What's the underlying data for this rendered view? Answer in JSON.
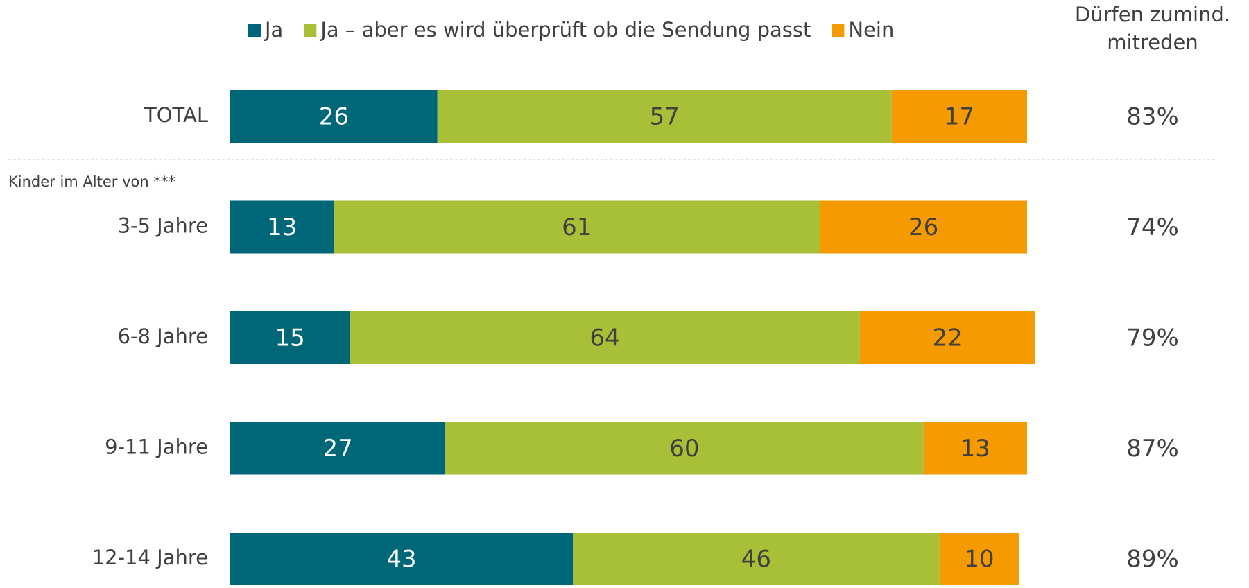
{
  "chart_data": {
    "type": "stacked-bar-horizontal",
    "categories": [
      "TOTAL",
      "3-5 Jahre",
      "6-8 Jahre",
      "9-11 Jahre",
      "12-14 Jahre"
    ],
    "series": [
      {
        "name": "Ja",
        "color": "#006778",
        "values": [
          26,
          13,
          15,
          27,
          43
        ]
      },
      {
        "name": "Ja – aber es wird überprüft ob die Sendung passt",
        "color": "#a8bf38",
        "values": [
          57,
          61,
          64,
          60,
          46
        ]
      },
      {
        "name": "Nein",
        "color": "#f59a00",
        "values": [
          17,
          26,
          22,
          13,
          10
        ]
      }
    ],
    "xlim": [
      0,
      100
    ],
    "annotation": "Kinder im Alter von ***",
    "summary": {
      "title": [
        "Dürfen  zumind.",
        "mitreden"
      ],
      "values": [
        83,
        74,
        79,
        87,
        89
      ],
      "value_labels": [
        "83%",
        "74%",
        "79%",
        "87%",
        "89%"
      ]
    }
  }
}
